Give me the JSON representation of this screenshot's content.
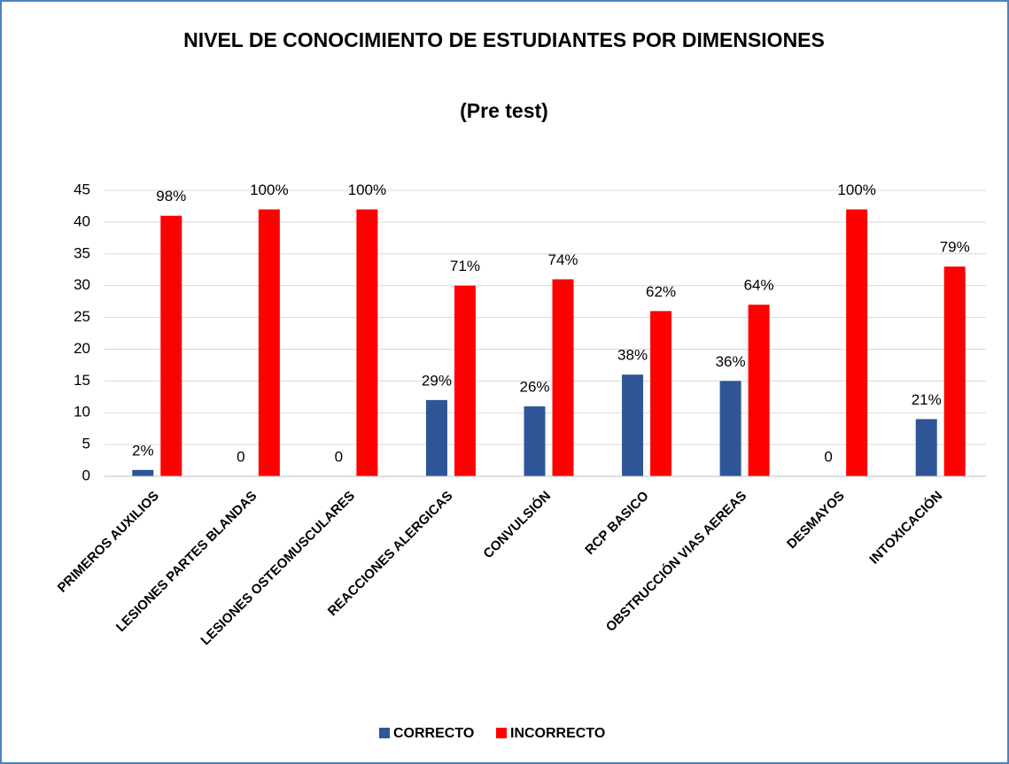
{
  "chart_data": {
    "type": "bar",
    "title": "NIVEL DE CONOCIMIENTO DE ESTUDIANTES POR DIMENSIONES",
    "subtitle": "(Pre test)",
    "categories": [
      "PRIMEROS AUXILIOS",
      "LESIONES PARTES BLANDAS",
      "LESIONES OSTEOMUSCULARES",
      "REACCIONES ALERGICAS",
      "CONVULSIÓN",
      "RCP BASICO",
      "OBSTRUCCIÓN VIAS AEREAS",
      "DESMAYOS",
      "INTOXICACIÓN"
    ],
    "series": [
      {
        "name": "CORRECTO",
        "color": "#2f5597",
        "values": [
          1,
          0,
          0,
          12,
          11,
          16,
          15,
          0,
          9
        ],
        "percent_labels": [
          "2%",
          "0",
          "0",
          "29%",
          "26%",
          "38%",
          "36%",
          "0",
          "21%"
        ]
      },
      {
        "name": "INCORRECTO",
        "color": "#ff0000",
        "values": [
          41,
          42,
          42,
          30,
          31,
          26,
          27,
          42,
          33
        ],
        "percent_labels": [
          "98%",
          "100%",
          "100%",
          "71%",
          "74%",
          "62%",
          "64%",
          "100%",
          "79%"
        ]
      }
    ],
    "ylim": [
      0,
      45
    ],
    "yticks": [
      0,
      5,
      10,
      15,
      20,
      25,
      30,
      35,
      40,
      45
    ],
    "grid": true,
    "legend": "bottom"
  }
}
